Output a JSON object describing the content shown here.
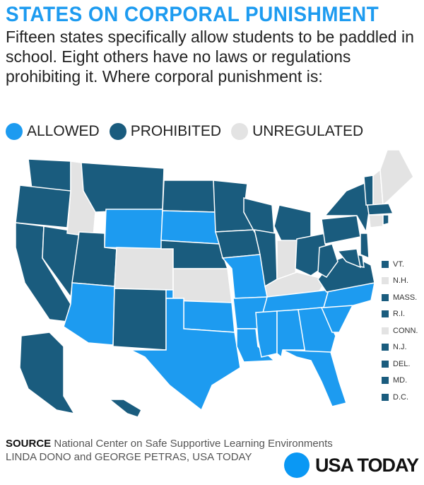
{
  "header": {
    "title": "STATES ON CORPORAL PUNISHMENT",
    "intro": "Fifteen states specifically allow students to be paddled in school. Eight others have no laws or regulations prohibiting it. Where corporal punishment is:"
  },
  "colors": {
    "allowed": "#1d9bf0",
    "prohibited": "#1a5c7e",
    "unregulated": "#e3e3e3",
    "title": "#1d9bf0"
  },
  "legend": [
    {
      "key": "allowed",
      "label": "ALLOWED"
    },
    {
      "key": "prohibited",
      "label": "PROHIBITED"
    },
    {
      "key": "unregulated",
      "label": "UNREGULATED"
    }
  ],
  "small_states": [
    {
      "label": "VT.",
      "status": "prohibited"
    },
    {
      "label": "N.H.",
      "status": "unregulated"
    },
    {
      "label": "MASS.",
      "status": "prohibited"
    },
    {
      "label": "R.I.",
      "status": "prohibited"
    },
    {
      "label": "CONN.",
      "status": "unregulated"
    },
    {
      "label": "N.J.",
      "status": "prohibited"
    },
    {
      "label": "DEL.",
      "status": "prohibited"
    },
    {
      "label": "MD.",
      "status": "prohibited"
    },
    {
      "label": "D.C.",
      "status": "prohibited"
    }
  ],
  "states": {
    "WA": "prohibited",
    "OR": "prohibited",
    "CA": "prohibited",
    "NV": "prohibited",
    "ID": "unregulated",
    "MT": "prohibited",
    "WY": "allowed",
    "UT": "prohibited",
    "CO": "unregulated",
    "AZ": "allowed",
    "NM": "prohibited",
    "ND": "prohibited",
    "SD": "allowed",
    "NE": "prohibited",
    "KS": "unregulated",
    "OK": "allowed",
    "TX": "allowed",
    "MN": "prohibited",
    "IA": "prohibited",
    "MO": "allowed",
    "AR": "allowed",
    "LA": "allowed",
    "WI": "prohibited",
    "IL": "prohibited",
    "MI": "prohibited",
    "IN": "unregulated",
    "OH": "prohibited",
    "KY": "unregulated",
    "TN": "allowed",
    "MS": "allowed",
    "AL": "allowed",
    "GA": "allowed",
    "FL": "allowed",
    "SC": "allowed",
    "NC": "allowed",
    "VA": "prohibited",
    "WV": "prohibited",
    "PA": "prohibited",
    "NY": "prohibited",
    "VT": "prohibited",
    "NH": "unregulated",
    "ME": "unregulated",
    "MA": "prohibited",
    "CT": "unregulated",
    "RI": "prohibited",
    "NJ": "prohibited",
    "DE": "prohibited",
    "MD": "prohibited",
    "AK": "prohibited",
    "HI": "prohibited"
  },
  "source": {
    "label": "SOURCE",
    "text": "National Center on Safe Supportive Learning Environments",
    "credit": "LINDA DONO and GEORGE PETRAS, USA TODAY"
  },
  "logo": {
    "text": "USA TODAY"
  }
}
